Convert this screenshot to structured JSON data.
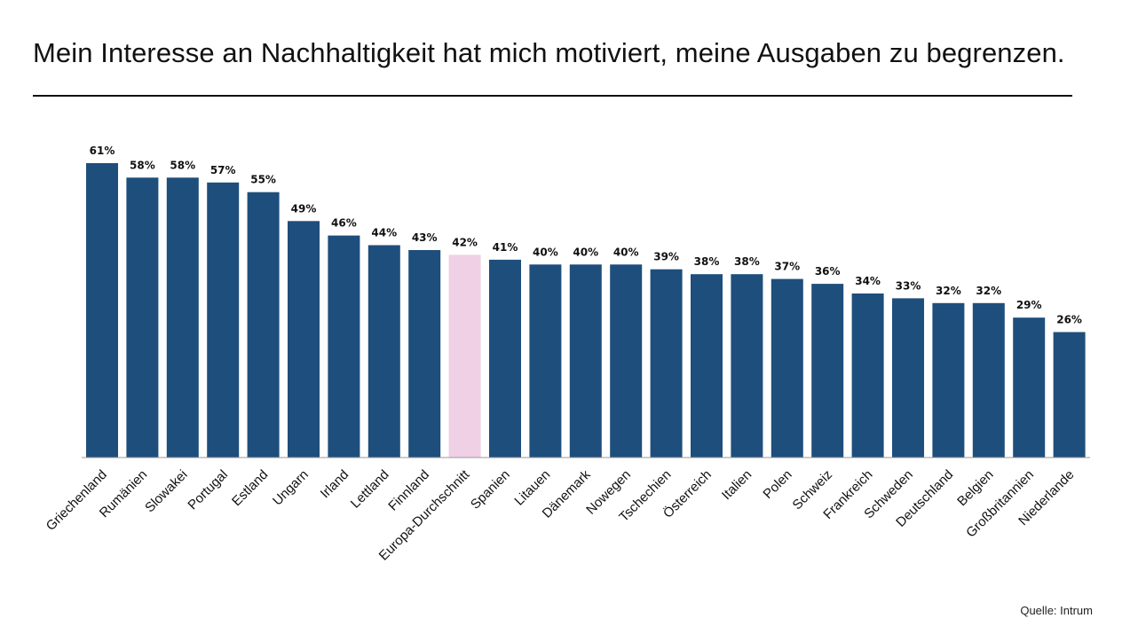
{
  "title": "Mein Interesse an Nachhaltigkeit hat mich motiviert, meine Ausgaben zu begrenzen.",
  "source": "Quelle: Intrum",
  "colors": {
    "bar": "#1e4e7c",
    "highlight": "#efd0e4",
    "axis": "#999999"
  },
  "chart_data": {
    "type": "bar",
    "title": "Mein Interesse an Nachhaltigkeit hat mich motiviert, meine Ausgaben zu begrenzen.",
    "xlabel": "",
    "ylabel": "",
    "ylim": [
      0,
      61
    ],
    "grid": false,
    "highlight_category": "Europa-Durchschnitt",
    "categories": [
      "Griechenland",
      "Rumänien",
      "Slowakei",
      "Portugal",
      "Estland",
      "Ungarn",
      "Irland",
      "Lettland",
      "Finnland",
      "Europa-Durchschnitt",
      "Spanien",
      "Litauen",
      "Dänemark",
      "Nowegen",
      "Tschechien",
      "Österreich",
      "Italien",
      "Polen",
      "Schweiz",
      "Frankreich",
      "Schweden",
      "Deutschland",
      "Belgien",
      "Großbritannien",
      "Niederlande"
    ],
    "values": [
      61,
      58,
      58,
      57,
      55,
      49,
      46,
      44,
      43,
      42,
      41,
      40,
      40,
      40,
      39,
      38,
      38,
      37,
      36,
      34,
      33,
      32,
      32,
      29,
      26
    ],
    "value_labels": [
      "61%",
      "58%",
      "58%",
      "57%",
      "55%",
      "49%",
      "46%",
      "44%",
      "43%",
      "42%",
      "41%",
      "40%",
      "40%",
      "40%",
      "39%",
      "38%",
      "38%",
      "37%",
      "36%",
      "34%",
      "33%",
      "32%",
      "32%",
      "29%",
      "26%"
    ]
  }
}
